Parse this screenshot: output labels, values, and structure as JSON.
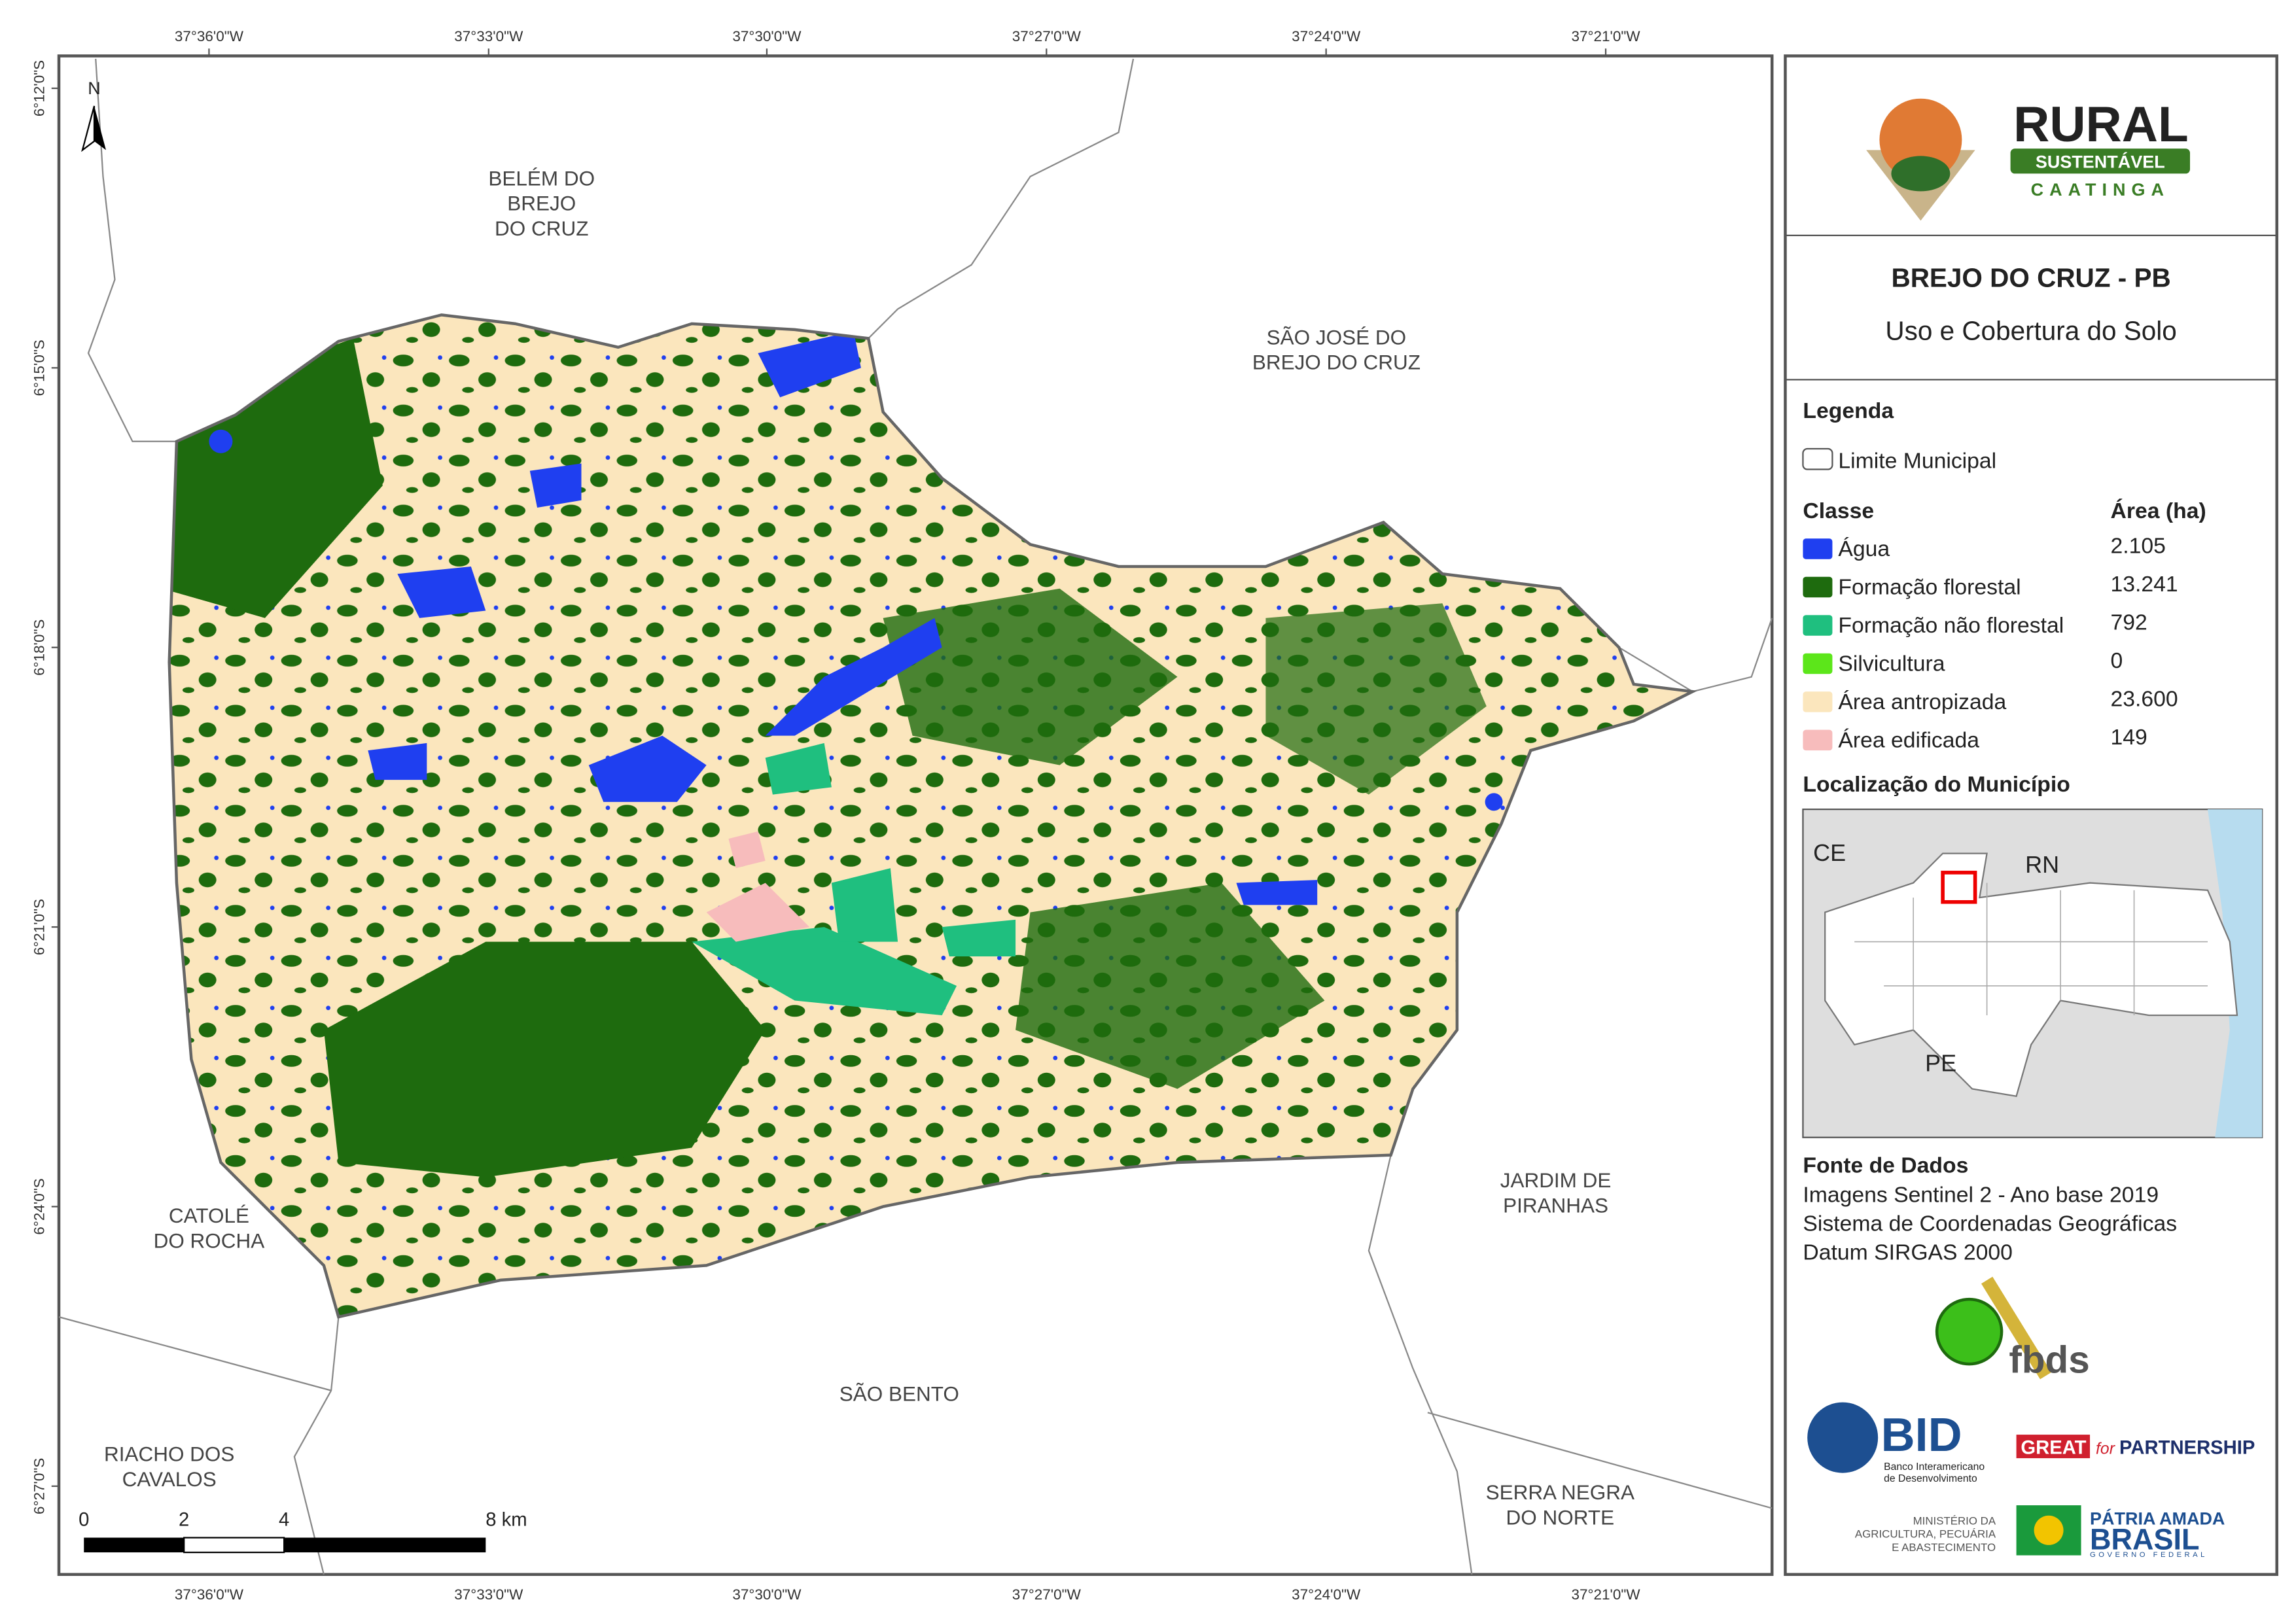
{
  "map": {
    "top_ticks": [
      "37°36'0\"W",
      "37°33'0\"W",
      "37°30'0\"W",
      "37°27'0\"W",
      "37°24'0\"W",
      "37°21'0\"W"
    ],
    "left_ticks": [
      "6°12'0\"S",
      "6°15'0\"S",
      "6°18'0\"S",
      "6°21'0\"S",
      "6°24'0\"S",
      "6°27'0\"S"
    ],
    "north": "N",
    "places": [
      {
        "lines": [
          "BELÉM DO",
          "BREJO",
          "DO CRUZ"
        ]
      },
      {
        "lines": [
          "SÃO JOSÉ DO",
          "BREJO DO CRUZ"
        ]
      },
      {
        "lines": [
          "CATOLÉ",
          "DO ROCHA"
        ]
      },
      {
        "lines": [
          "JARDIM DE",
          "PIRANHAS"
        ]
      },
      {
        "lines": [
          "SÃO BENTO"
        ]
      },
      {
        "lines": [
          "RIACHO DOS",
          "CAVALOS"
        ]
      },
      {
        "lines": [
          "SERRA NEGRA",
          "DO NORTE"
        ]
      }
    ],
    "scale_bar": [
      "0",
      "2",
      "4",
      "8 km"
    ]
  },
  "panel": {
    "logo": {
      "title": "RURAL",
      "subtitle": "SUSTENTÁVEL",
      "region": "CAATINGA"
    },
    "title": "BREJO DO CRUZ - PB",
    "subtitle": "Uso e Cobertura do Solo",
    "legend": {
      "heading": "Legenda",
      "boundary": "Limite Municipal",
      "class_header": "Classe",
      "area_header": "Área (ha)",
      "classes": [
        {
          "name": "Água",
          "color": "#1f3ff0",
          "area": "2.105"
        },
        {
          "name": "Formação florestal",
          "color": "#1e6b0e",
          "area": "13.241"
        },
        {
          "name": "Formação não florestal",
          "color": "#1fbf7f",
          "area": "792"
        },
        {
          "name": "Silvicultura",
          "color": "#5ce61a",
          "area": "0"
        },
        {
          "name": "Área antropizada",
          "color": "#fbe6bd",
          "area": "23.600"
        },
        {
          "name": "Área edificada",
          "color": "#f7bcbc",
          "area": "149"
        }
      ]
    },
    "location": {
      "heading": "Localização do Município",
      "labels": [
        "CE",
        "RN",
        "PE"
      ]
    },
    "sources": {
      "heading": "Fonte de Dados",
      "lines": [
        "Imagens Sentinel 2 - Ano base 2019",
        "Sistema de Coordenadas Geográficas",
        "Datum SIRGAS 2000"
      ]
    },
    "logos": {
      "fbds": "fbds",
      "bid": "BID",
      "bid_name": [
        "Banco Interamericano",
        "de Desenvolvimento"
      ],
      "great": "GREAT",
      "great_for": "for",
      "great_partnership": "PARTNERSHIP",
      "ministry": [
        "MINISTÉRIO DA",
        "AGRICULTURA, PECUÁRIA",
        "E ABASTECIMENTO"
      ],
      "patria": "PÁTRIA AMADA",
      "brasil": "BRASIL",
      "governo": "GOVERNO FEDERAL"
    }
  }
}
